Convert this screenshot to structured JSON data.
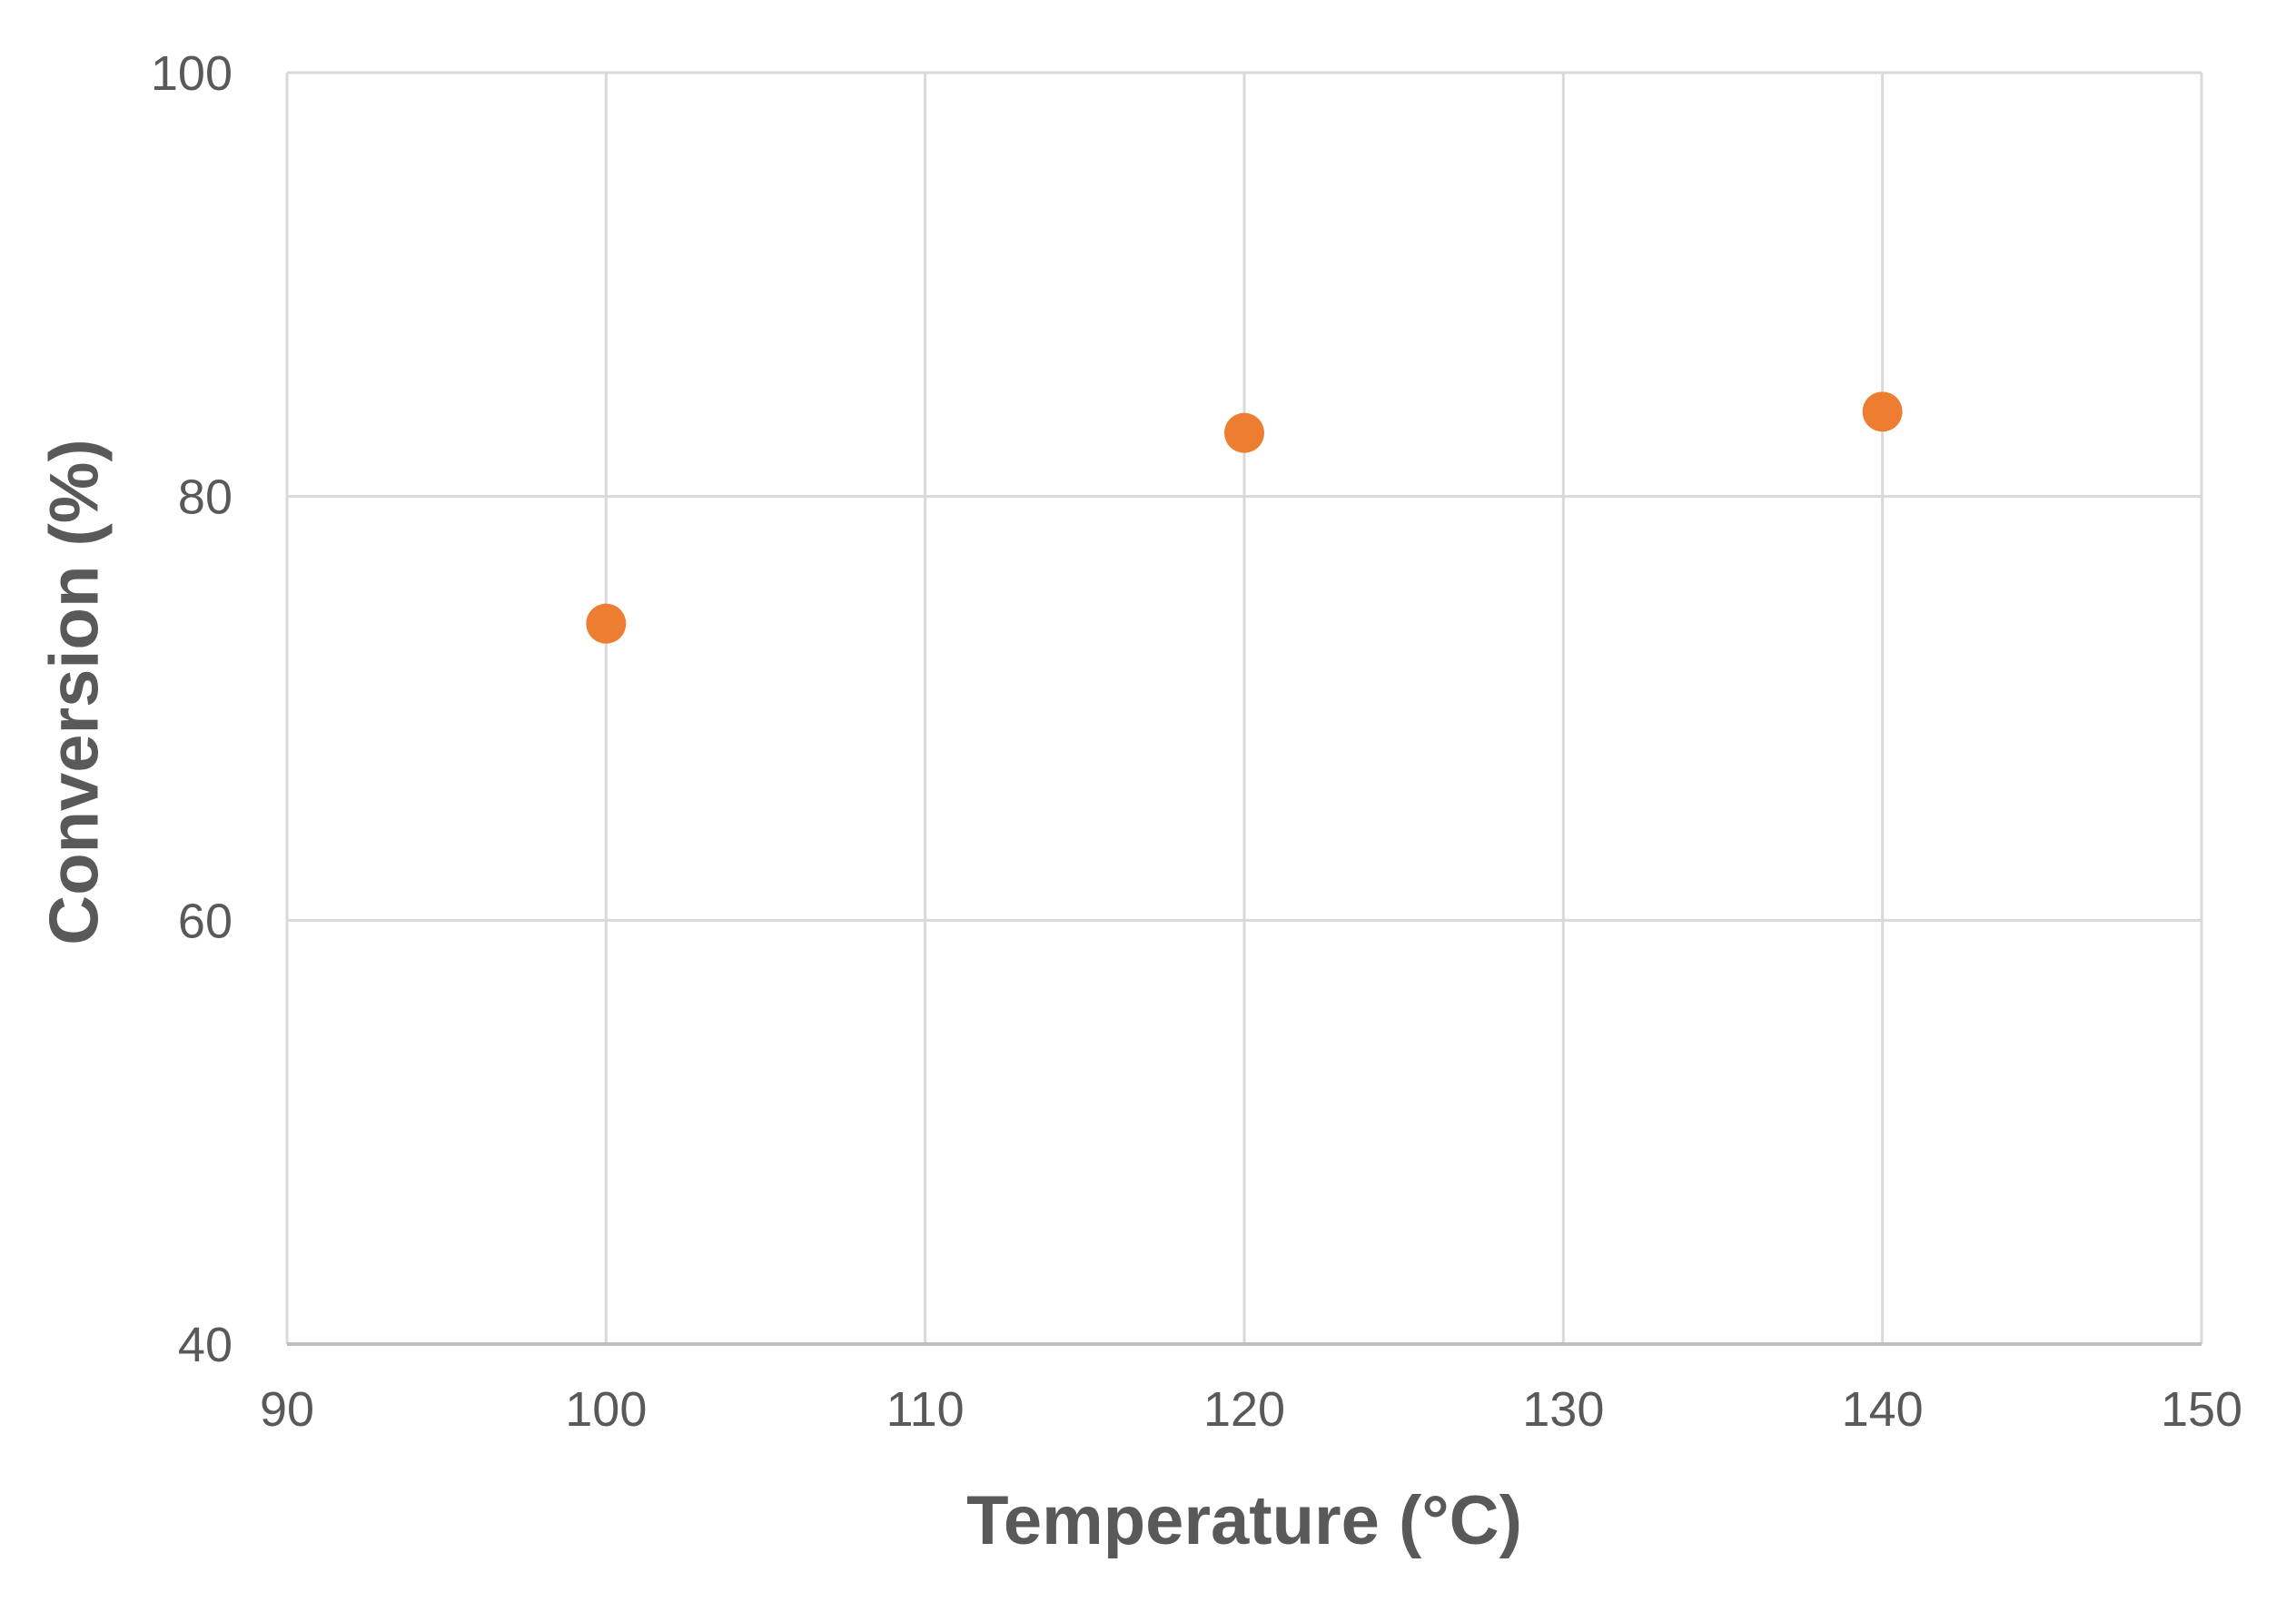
{
  "chart_data": {
    "type": "scatter",
    "title": "",
    "xlabel": "Temperature (°C)",
    "ylabel": "Conversion (%)",
    "xlim": [
      90,
      150
    ],
    "ylim": [
      40,
      100
    ],
    "x_ticks": [
      90,
      100,
      110,
      120,
      130,
      140,
      150
    ],
    "y_ticks": [
      40,
      60,
      80,
      100
    ],
    "grid": true,
    "legend": "none",
    "series": [
      {
        "color": "#ED7D31",
        "points": [
          {
            "x": 100,
            "y": 74
          },
          {
            "x": 120,
            "y": 83
          },
          {
            "x": 140,
            "y": 84
          }
        ]
      }
    ],
    "colors": {
      "marker": "#ED7D31",
      "grid": "#D9D9D9",
      "text": "#595959"
    }
  }
}
